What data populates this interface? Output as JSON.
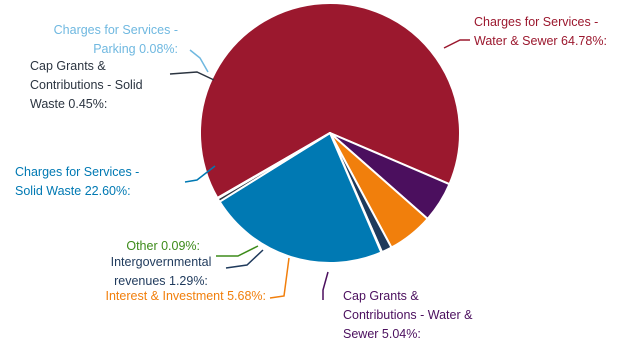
{
  "chart_data": {
    "type": "pie",
    "slices": [
      {
        "key": "water_sewer",
        "label_lines": [
          "Charges for Services -",
          "Water & Sewer 64.78%:"
        ],
        "value": 64.78,
        "color": "#9b182e"
      },
      {
        "key": "cap_water",
        "label_lines": [
          "Cap Grants &",
          "Contributions - Water &",
          "Sewer 5.04%:"
        ],
        "value": 5.04,
        "color": "#4b0f5e"
      },
      {
        "key": "interest",
        "label_lines": [
          "Interest & Investment 5.68%:"
        ],
        "value": 5.68,
        "color": "#f17f0c"
      },
      {
        "key": "intergov",
        "label_lines": [
          "Intergovernmental",
          "revenues 1.29%:"
        ],
        "value": 1.29,
        "color": "#1f3a5c"
      },
      {
        "key": "other",
        "label_lines": [
          "Other 0.09%:"
        ],
        "value": 0.09,
        "color": "#3d8b1a"
      },
      {
        "key": "solid_waste",
        "label_lines": [
          "Charges for Services -",
          "Solid Waste 22.60%:"
        ],
        "value": 22.6,
        "color": "#0079b3"
      },
      {
        "key": "cap_solid",
        "label_lines": [
          "Cap Grants &",
          "Contributions - Solid",
          "Waste 0.45%:"
        ],
        "value": 0.45,
        "color": "#2b3440"
      },
      {
        "key": "parking",
        "label_lines": [
          "Charges for Services -",
          "Parking 0.08%:"
        ],
        "value": 0.08,
        "color": "#6fb8e0"
      }
    ]
  }
}
